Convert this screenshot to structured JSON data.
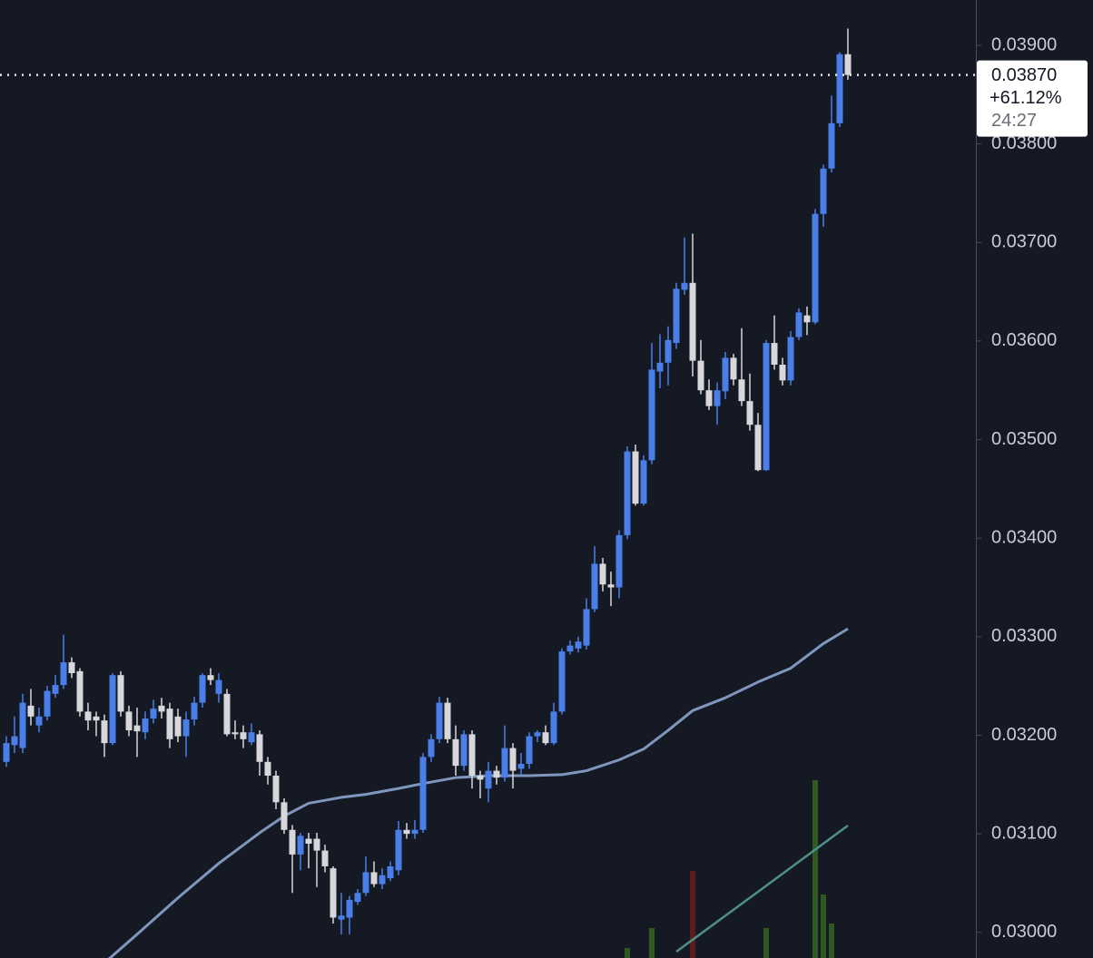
{
  "chart_data": {
    "type": "candlestick",
    "ylim": [
      0.02974,
      0.03946
    ],
    "yticks": [
      {
        "value": 0.039,
        "label": "0.03900"
      },
      {
        "value": 0.038,
        "label": "0.03800"
      },
      {
        "value": 0.037,
        "label": "0.03700"
      },
      {
        "value": 0.036,
        "label": "0.03600"
      },
      {
        "value": 0.035,
        "label": "0.03500"
      },
      {
        "value": 0.034,
        "label": "0.03400"
      },
      {
        "value": 0.033,
        "label": "0.03300"
      },
      {
        "value": 0.032,
        "label": "0.03200"
      },
      {
        "value": 0.031,
        "label": "0.03100"
      },
      {
        "value": 0.03,
        "label": "0.03000"
      }
    ],
    "up_color": "#4a7ee8",
    "down_color": "#d8d8dc",
    "candles": [
      [
        0.03173,
        0.03199,
        0.03168,
        0.03192
      ],
      [
        0.0319,
        0.03219,
        0.03182,
        0.03199
      ],
      [
        0.03187,
        0.03242,
        0.03182,
        0.03233
      ],
      [
        0.0323,
        0.03247,
        0.0321,
        0.03219
      ],
      [
        0.0321,
        0.03228,
        0.03203,
        0.03219
      ],
      [
        0.03219,
        0.0325,
        0.03215,
        0.03245
      ],
      [
        0.03242,
        0.03261,
        0.03238,
        0.03251
      ],
      [
        0.03251,
        0.03302,
        0.03247,
        0.03274
      ],
      [
        0.03274,
        0.03279,
        0.03258,
        0.03263
      ],
      [
        0.03265,
        0.03268,
        0.03219,
        0.03224
      ],
      [
        0.03224,
        0.03233,
        0.03205,
        0.03215
      ],
      [
        0.03219,
        0.03224,
        0.03199,
        0.03215
      ],
      [
        0.03215,
        0.03221,
        0.03178,
        0.03192
      ],
      [
        0.03192,
        0.03263,
        0.0319,
        0.03261
      ],
      [
        0.03261,
        0.03265,
        0.03219,
        0.03224
      ],
      [
        0.03224,
        0.0323,
        0.03199,
        0.03205
      ],
      [
        0.0321,
        0.03228,
        0.03178,
        0.03204
      ],
      [
        0.03203,
        0.03224,
        0.03196,
        0.03217
      ],
      [
        0.03217,
        0.03236,
        0.03212,
        0.03227
      ],
      [
        0.0323,
        0.03238,
        0.03217,
        0.03224
      ],
      [
        0.03227,
        0.03233,
        0.03187,
        0.03196
      ],
      [
        0.03219,
        0.03227,
        0.03193,
        0.03199
      ],
      [
        0.03199,
        0.03224,
        0.03178,
        0.03216
      ],
      [
        0.03216,
        0.03239,
        0.0321,
        0.03233
      ],
      [
        0.03233,
        0.03263,
        0.03228,
        0.03261
      ],
      [
        0.03261,
        0.03268,
        0.03251,
        0.03256
      ],
      [
        0.03242,
        0.03263,
        0.03233,
        0.03256
      ],
      [
        0.03242,
        0.03247,
        0.03199,
        0.03201
      ],
      [
        0.03203,
        0.03215,
        0.03196,
        0.03201
      ],
      [
        0.03203,
        0.0321,
        0.03187,
        0.03196
      ],
      [
        0.03193,
        0.03212,
        0.0319,
        0.03203
      ],
      [
        0.03201,
        0.03205,
        0.03159,
        0.03173
      ],
      [
        0.03173,
        0.03178,
        0.0315,
        0.03159
      ],
      [
        0.03159,
        0.03164,
        0.03125,
        0.03132
      ],
      [
        0.03132,
        0.03136,
        0.031,
        0.03104
      ],
      [
        0.03104,
        0.03109,
        0.0304,
        0.03079
      ],
      [
        0.03079,
        0.03101,
        0.03063,
        0.03098
      ],
      [
        0.03095,
        0.03101,
        0.03065,
        0.0309
      ],
      [
        0.03095,
        0.03101,
        0.03046,
        0.03083
      ],
      [
        0.03083,
        0.03089,
        0.03061,
        0.03067
      ],
      [
        0.03065,
        0.03067,
        0.03009,
        0.03015
      ],
      [
        0.03013,
        0.0304,
        0.02998,
        0.03017
      ],
      [
        0.03015,
        0.03037,
        0.02998,
        0.03033
      ],
      [
        0.03031,
        0.03044,
        0.03028,
        0.0304
      ],
      [
        0.0304,
        0.03077,
        0.03037,
        0.03061
      ],
      [
        0.03061,
        0.03072,
        0.03046,
        0.03049
      ],
      [
        0.03049,
        0.03065,
        0.03044,
        0.03058
      ],
      [
        0.03055,
        0.03072,
        0.03052,
        0.03067
      ],
      [
        0.03063,
        0.03113,
        0.03058,
        0.03104
      ],
      [
        0.03104,
        0.03111,
        0.03095,
        0.031
      ],
      [
        0.031,
        0.03114,
        0.03095,
        0.03104
      ],
      [
        0.03104,
        0.03182,
        0.03101,
        0.03178
      ],
      [
        0.03178,
        0.03201,
        0.03173,
        0.03196
      ],
      [
        0.03196,
        0.03239,
        0.03192,
        0.03233
      ],
      [
        0.03233,
        0.03238,
        0.03192,
        0.03196
      ],
      [
        0.03196,
        0.0321,
        0.03159,
        0.03169
      ],
      [
        0.03169,
        0.03205,
        0.03164,
        0.03201
      ],
      [
        0.03201,
        0.03205,
        0.03146,
        0.03159
      ],
      [
        0.03159,
        0.03164,
        0.03136,
        0.03155
      ],
      [
        0.03146,
        0.03173,
        0.03132,
        0.03164
      ],
      [
        0.03164,
        0.03169,
        0.0315,
        0.03157
      ],
      [
        0.03157,
        0.0321,
        0.03153,
        0.03187
      ],
      [
        0.03187,
        0.03192,
        0.03146,
        0.03164
      ],
      [
        0.03166,
        0.03182,
        0.03159,
        0.03171
      ],
      [
        0.03171,
        0.03203,
        0.03166,
        0.03199
      ],
      [
        0.03199,
        0.03205,
        0.03193,
        0.03203
      ],
      [
        0.03203,
        0.0321,
        0.0319,
        0.03192
      ],
      [
        0.03192,
        0.03233,
        0.0319,
        0.03224
      ],
      [
        0.03224,
        0.03288,
        0.03221,
        0.03285
      ],
      [
        0.03285,
        0.03296,
        0.03282,
        0.03291
      ],
      [
        0.03288,
        0.033,
        0.03284,
        0.03295
      ],
      [
        0.03291,
        0.03339,
        0.03287,
        0.03328
      ],
      [
        0.03328,
        0.03392,
        0.03325,
        0.03374
      ],
      [
        0.03374,
        0.0338,
        0.03346,
        0.03353
      ],
      [
        0.03353,
        0.03366,
        0.03331,
        0.0335
      ],
      [
        0.0335,
        0.03408,
        0.03339,
        0.03403
      ],
      [
        0.03403,
        0.03493,
        0.03399,
        0.03488
      ],
      [
        0.03488,
        0.03495,
        0.03433,
        0.03435
      ],
      [
        0.03435,
        0.03484,
        0.03433,
        0.03479
      ],
      [
        0.03479,
        0.03598,
        0.03475,
        0.03571
      ],
      [
        0.03569,
        0.03607,
        0.03552,
        0.03578
      ],
      [
        0.03578,
        0.03615,
        0.03555,
        0.03601
      ],
      [
        0.03598,
        0.03659,
        0.03592,
        0.03653
      ],
      [
        0.03652,
        0.03705,
        0.03647,
        0.03659
      ],
      [
        0.03659,
        0.03709,
        0.03564,
        0.0358
      ],
      [
        0.0358,
        0.03601,
        0.03546,
        0.0355
      ],
      [
        0.0355,
        0.03561,
        0.0353,
        0.03534
      ],
      [
        0.03534,
        0.03558,
        0.03515,
        0.0355
      ],
      [
        0.03549,
        0.03589,
        0.03541,
        0.03583
      ],
      [
        0.03583,
        0.03587,
        0.03555,
        0.03561
      ],
      [
        0.03561,
        0.03613,
        0.03534,
        0.03539
      ],
      [
        0.03539,
        0.03567,
        0.03509,
        0.03515
      ],
      [
        0.03515,
        0.03527,
        0.03468,
        0.03469
      ],
      [
        0.03469,
        0.03601,
        0.03468,
        0.03598
      ],
      [
        0.03598,
        0.03626,
        0.03571,
        0.03576
      ],
      [
        0.03576,
        0.03583,
        0.03555,
        0.0356
      ],
      [
        0.0356,
        0.0361,
        0.03555,
        0.03604
      ],
      [
        0.03604,
        0.03633,
        0.03601,
        0.03629
      ],
      [
        0.03626,
        0.03635,
        0.03606,
        0.03619
      ],
      [
        0.03619,
        0.03734,
        0.03617,
        0.03729
      ],
      [
        0.03729,
        0.03779,
        0.03716,
        0.03775
      ],
      [
        0.03775,
        0.03849,
        0.03771,
        0.03821
      ],
      [
        0.03821,
        0.03893,
        0.03817,
        0.03891
      ],
      [
        0.03891,
        0.03917,
        0.03865,
        0.0387
      ]
    ],
    "ma": {
      "color": "#7f96bd",
      "x": [
        12,
        16,
        21,
        26,
        31,
        34,
        37,
        41,
        44,
        48,
        51,
        55,
        59,
        64,
        68,
        71,
        75,
        78,
        81,
        84,
        88,
        92,
        96,
        100,
        103
      ],
      "values": [
        0.02969,
        0.02998,
        0.03035,
        0.0307,
        0.03101,
        0.03118,
        0.03131,
        0.03137,
        0.0314,
        0.03146,
        0.03151,
        0.03157,
        0.03159,
        0.03159,
        0.0316,
        0.03164,
        0.03175,
        0.03186,
        0.03205,
        0.03225,
        0.03238,
        0.03254,
        0.03268,
        0.03293,
        0.03308
      ]
    },
    "volume": {
      "ylim": [
        0,
        200
      ],
      "x": [
        76,
        79,
        84,
        93,
        99,
        100,
        101
      ],
      "values": [
        11,
        33,
        96,
        33,
        196,
        70,
        38
      ],
      "colors": [
        "#2f5a1f",
        "#2f5a1f",
        "#5e1b1e",
        "#2f5a1f",
        "#2f5a1f",
        "#2f5a1f",
        "#2f5a1f"
      ]
    },
    "volume_ma": {
      "color": "#4e8f88",
      "x": [
        82,
        92,
        103
      ],
      "values": [
        7,
        73,
        146
      ]
    },
    "last_price": {
      "value": 0.0387,
      "label": "0.03870",
      "change": "+61.12%",
      "countdown": "24:27"
    }
  }
}
